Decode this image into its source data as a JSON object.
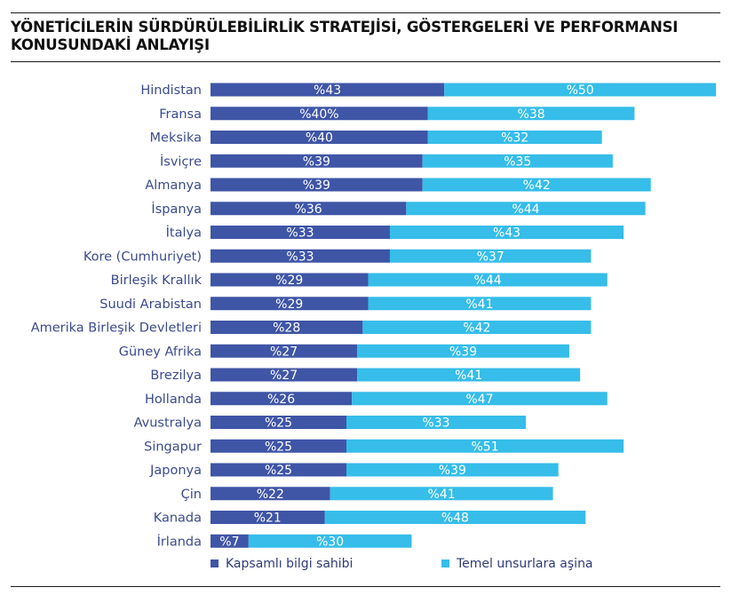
{
  "title": "YÖNETİCİLERİN SÜRDÜRÜLEBİLİRLİK STRATEJİSİ, GÖSTERGELERİ VE PERFORMANSI KONUSUNDAKİ ANLAYIŞI",
  "chart_data": {
    "type": "bar",
    "orientation": "horizontal",
    "stacked": true,
    "categories": [
      "Hindistan",
      "Fransa",
      "Meksika",
      "İsviçre",
      "Almanya",
      "İspanya",
      "İtalya",
      "Kore (Cumhuriyet)",
      "Birleşik Krallık",
      "Suudi Arabistan",
      "Amerika Birleşik Devletleri",
      "Güney Afrika",
      "Brezilya",
      "Hollanda",
      "Avustralya",
      "Singapur",
      "Japonya",
      "Çin",
      "Kanada",
      "İrlanda"
    ],
    "series": [
      {
        "name": "Kapsamlı bilgi sahibi",
        "color": "#3f55a6",
        "values": [
          43,
          40,
          40,
          39,
          39,
          36,
          33,
          33,
          29,
          29,
          28,
          27,
          27,
          26,
          25,
          25,
          25,
          22,
          21,
          7
        ],
        "labels": [
          "%43",
          "%40%",
          "%40",
          "%39",
          "%39",
          "%36",
          "%33",
          "%33",
          "%29",
          "%29",
          "%28",
          "%27",
          "%27",
          "%26",
          "%25",
          "%25",
          "%25",
          "%22",
          "%21",
          "%7"
        ]
      },
      {
        "name": "Temel unsurlara aşina",
        "color": "#36bde9",
        "values": [
          50,
          38,
          32,
          35,
          42,
          44,
          43,
          37,
          44,
          41,
          42,
          39,
          41,
          47,
          33,
          51,
          39,
          41,
          48,
          30
        ],
        "labels": [
          "%50",
          "%38",
          "%32",
          "%35",
          "%42",
          "%44",
          "%43",
          "%37",
          "%44",
          "%41",
          "%42",
          "%39",
          "%41",
          "%47",
          "%33",
          "%51",
          "%39",
          "%41",
          "%48",
          "%30"
        ]
      }
    ],
    "legend_position": "bottom",
    "grid": false
  }
}
